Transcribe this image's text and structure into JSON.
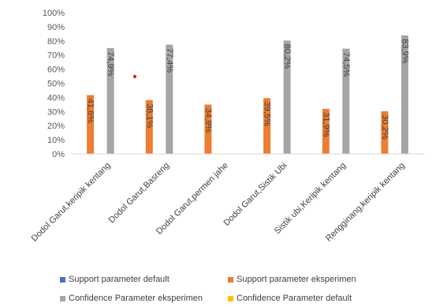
{
  "chart_data": {
    "type": "bar",
    "categories": [
      "Dodol Garut,keripik kentang",
      "Dodol Garut,Basreng",
      "Dodol Garut,permen jahe",
      "Dodol Garut,Sistik Ubi",
      "Sistik ubi,Keripik kentang",
      "Rengginang,keripik kentang"
    ],
    "series": [
      {
        "name": "Support parameter default",
        "color": "#4472C4",
        "values": [
          null,
          null,
          null,
          null,
          null,
          null
        ],
        "labels": [
          "",
          "",
          "",
          "",
          "",
          ""
        ]
      },
      {
        "name": "Support parameter eksperimen",
        "color": "#ED7D31",
        "values": [
          41.6,
          38.1,
          34.9,
          39.5,
          31.9,
          30.2
        ],
        "labels": [
          "41,6%",
          "38,1%",
          "34,9%",
          "39,5%",
          "31,9%",
          "30,2%"
        ]
      },
      {
        "name": "Confidence Parameter eksperimen",
        "color": "#A5A5A5",
        "values": [
          74.9,
          77.4,
          null,
          80.2,
          74.5,
          83.9
        ],
        "labels": [
          "74,9%",
          "77,4%",
          "",
          "80,2%",
          "74,5%",
          "83,9%"
        ]
      },
      {
        "name": "Confidence Parameter default",
        "color": "#FFC000",
        "values": [
          null,
          null,
          null,
          null,
          null,
          null
        ],
        "labels": [
          "",
          "",
          "",
          "",
          "",
          ""
        ]
      }
    ],
    "y_ticks": [
      "0%",
      "10%",
      "20%",
      "30%",
      "40%",
      "50%",
      "60%",
      "70%",
      "80%",
      "90%",
      "100%"
    ],
    "ylim": [
      0,
      100
    ],
    "legend_position": "bottom",
    "grid": false
  }
}
